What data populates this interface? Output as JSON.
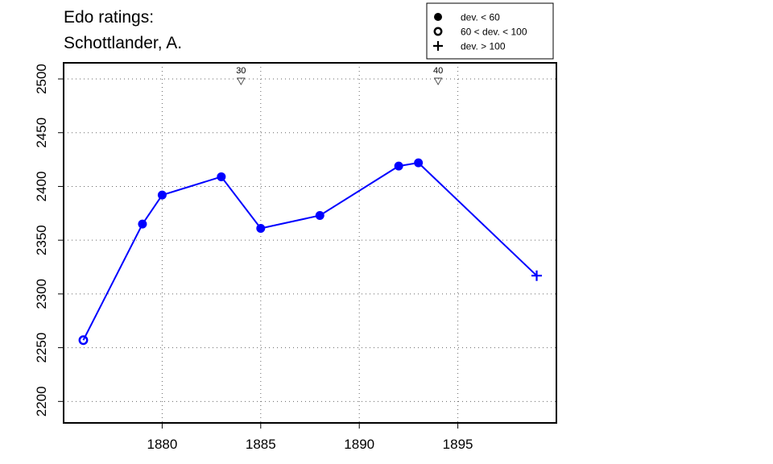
{
  "chart_data": {
    "type": "line",
    "title": "Edo ratings:",
    "subtitle": "Schottlander, A.",
    "xlabel": "",
    "ylabel": "",
    "xlim": [
      1875,
      1900
    ],
    "ylim": [
      2180,
      2515
    ],
    "x_ticks": [
      1880,
      1885,
      1890,
      1895
    ],
    "y_ticks": [
      2200,
      2250,
      2300,
      2350,
      2400,
      2450,
      2500
    ],
    "grid": true,
    "line_color": "#0000ff",
    "series": [
      {
        "points": [
          {
            "x": 1876,
            "y": 2257,
            "marker": "open-circle"
          },
          {
            "x": 1879,
            "y": 2365,
            "marker": "filled-circle"
          },
          {
            "x": 1880,
            "y": 2392,
            "marker": "filled-circle"
          },
          {
            "x": 1883,
            "y": 2409,
            "marker": "filled-circle"
          },
          {
            "x": 1885,
            "y": 2361,
            "marker": "filled-circle"
          },
          {
            "x": 1888,
            "y": 2373,
            "marker": "filled-circle"
          },
          {
            "x": 1892,
            "y": 2419,
            "marker": "filled-circle"
          },
          {
            "x": 1893,
            "y": 2422,
            "marker": "filled-circle"
          },
          {
            "x": 1899,
            "y": 2317,
            "marker": "plus"
          }
        ]
      }
    ],
    "annotations": [
      {
        "x": 1884,
        "label": "30",
        "marker": "down-triangle"
      },
      {
        "x": 1894,
        "label": "40",
        "marker": "down-triangle"
      }
    ],
    "legend": {
      "placement": "top-right",
      "entries": [
        {
          "marker": "filled-circle",
          "label": "dev. < 60"
        },
        {
          "marker": "open-circle",
          "label": "60 < dev. < 100"
        },
        {
          "marker": "plus",
          "label": "dev. > 100"
        }
      ]
    }
  }
}
